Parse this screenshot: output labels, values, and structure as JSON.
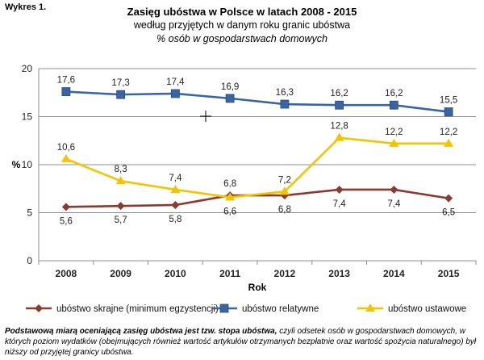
{
  "figure_label": "Wykres 1.",
  "footnote": {
    "bold": "Podstawową miarą oceniającą zasięg ubóstwa jest tzw. stopa ubóstwa,",
    "rest": " czyli odsetek osób w gospodarstwach domowych, w których poziom wydatków (obejmujących również wartość artykułów otrzymanych bezpłatnie oraz wartość spożycia naturalnego) był niższy od przyjętej granicy ubóstwa."
  },
  "chart_data": {
    "type": "line",
    "title": "Zasięg ubóstwa w Polsce w latach 2008 - 2015",
    "subtitle": "według przyjętych w danym roku granic ubóstwa",
    "subtitle2": "% osób w gospodarstwach domowych",
    "xlabel": "Rok",
    "ylabel": "%",
    "ylim": [
      0,
      20
    ],
    "yticks": [
      0,
      5,
      10,
      15,
      20
    ],
    "grid": true,
    "legend_position": "bottom",
    "categories": [
      "2008",
      "2009",
      "2010",
      "2011",
      "2012",
      "2013",
      "2014",
      "2015"
    ],
    "series": [
      {
        "name": "ubóstwo skrajne (minimum egzystencji)",
        "color": "#8B3A2F",
        "marker": "diamond",
        "values": [
          5.6,
          5.7,
          5.8,
          6.8,
          6.8,
          7.4,
          7.4,
          6.5
        ],
        "labels": [
          "5,6",
          "5,7",
          "5,8",
          "6,8",
          "6,8",
          "7,4",
          "7,4",
          "6,5"
        ],
        "label_pos": [
          "below",
          "below",
          "below",
          "above",
          "below",
          "below",
          "below",
          "below"
        ]
      },
      {
        "name": "ubóstwo relatywne",
        "color": "#3A65A3",
        "marker": "square",
        "values": [
          17.6,
          17.3,
          17.4,
          16.9,
          16.3,
          16.2,
          16.2,
          15.5
        ],
        "labels": [
          "17,6",
          "17,3",
          "17,4",
          "16,9",
          "16,3",
          "16,2",
          "16,2",
          "15,5"
        ],
        "label_pos": [
          "above",
          "above",
          "above",
          "above",
          "above",
          "above",
          "above",
          "above"
        ]
      },
      {
        "name": "ubóstwo ustawowe",
        "color": "#F2C500",
        "marker": "triangle",
        "values": [
          10.6,
          8.3,
          7.4,
          6.6,
          7.2,
          12.8,
          12.2,
          12.2
        ],
        "labels": [
          "10,6",
          "8,3",
          "7,4",
          "6,6",
          "7,2",
          "12,8",
          "12,2",
          "12,2"
        ],
        "label_pos": [
          "above",
          "above",
          "above",
          "below",
          "above",
          "above",
          "above",
          "above"
        ]
      }
    ]
  }
}
